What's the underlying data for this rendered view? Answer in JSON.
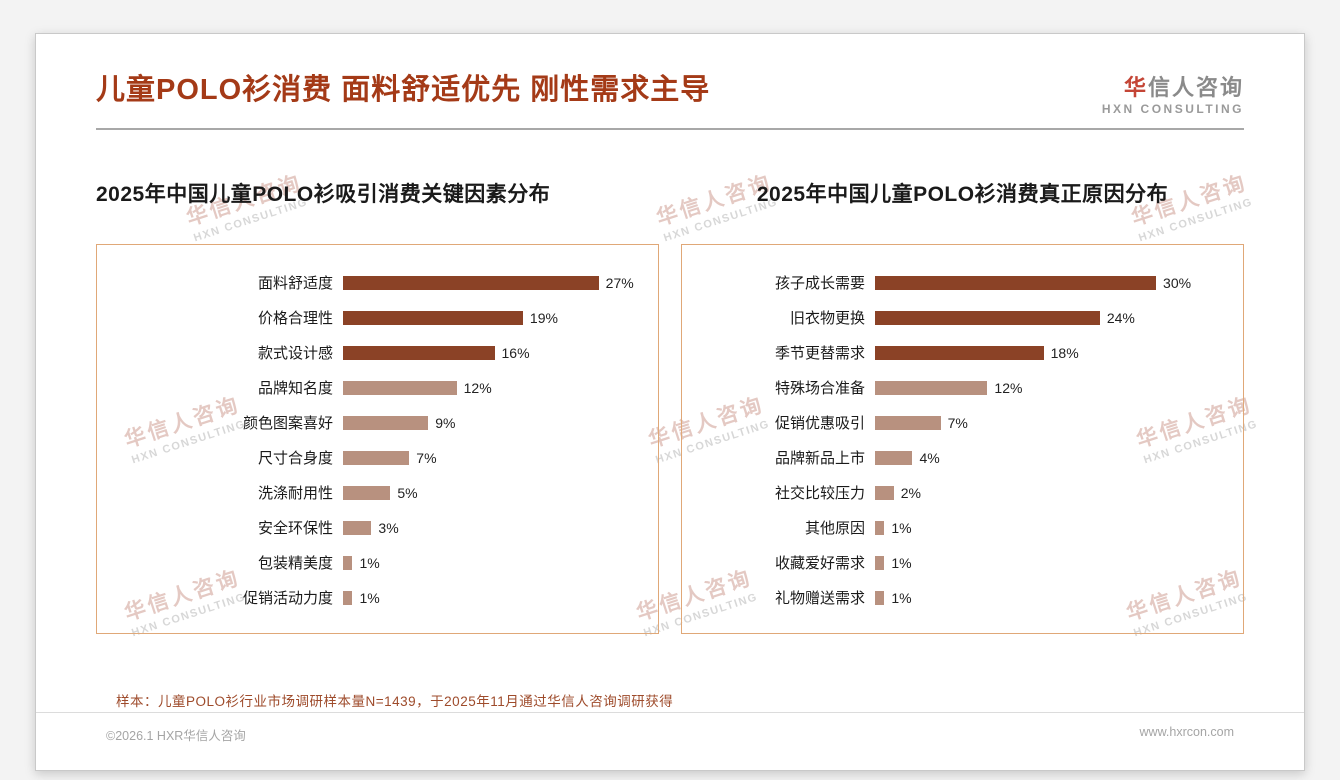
{
  "header": {
    "title": "儿童POLO衫消费 面料舒适优先 刚性需求主导",
    "logo": {
      "cn_accent": "华",
      "cn_rest": "信人咨询",
      "en": "HXN CONSULTING"
    }
  },
  "watermark": {
    "cn": "华信人咨询",
    "en": "HXN CONSULTING"
  },
  "chart_data": [
    {
      "type": "bar",
      "orientation": "horizontal",
      "title": "2025年中国儿童POLO衫吸引消费关键因素分布",
      "categories": [
        "面料舒适度",
        "价格合理性",
        "款式设计感",
        "品牌知名度",
        "颜色图案喜好",
        "尺寸合身度",
        "洗涤耐用性",
        "安全环保性",
        "包装精美度",
        "促销活动力度"
      ],
      "values": [
        27,
        19,
        16,
        12,
        9,
        7,
        5,
        3,
        1,
        1
      ],
      "value_suffix": "%",
      "xlim": [
        0,
        32
      ],
      "dark_bar_count": 3,
      "grid": false,
      "legend": false
    },
    {
      "type": "bar",
      "orientation": "horizontal",
      "title": "2025年中国儿童POLO衫消费真正原因分布",
      "categories": [
        "孩子成长需要",
        "旧衣物更换",
        "季节更替需求",
        "特殊场合准备",
        "促销优惠吸引",
        "品牌新品上市",
        "社交比较压力",
        "其他原因",
        "收藏爱好需求",
        "礼物赠送需求"
      ],
      "values": [
        30,
        24,
        18,
        12,
        7,
        4,
        2,
        1,
        1,
        1
      ],
      "value_suffix": "%",
      "xlim": [
        0,
        38
      ],
      "dark_bar_count": 3,
      "grid": false,
      "legend": false
    }
  ],
  "footer": {
    "note": "样本：儿童POLO衫行业市场调研样本量N=1439，于2025年11月通过华信人咨询调研获得",
    "copyright": "©2026.1 HXR华信人咨询",
    "website": "www.hxrcon.com"
  },
  "colors": {
    "title_accent": "#A43A17",
    "bar_dark": "#8B4226",
    "bar_light": "#B8917F",
    "chart_border": "#E0A878",
    "note_text": "#9E4B2B"
  }
}
